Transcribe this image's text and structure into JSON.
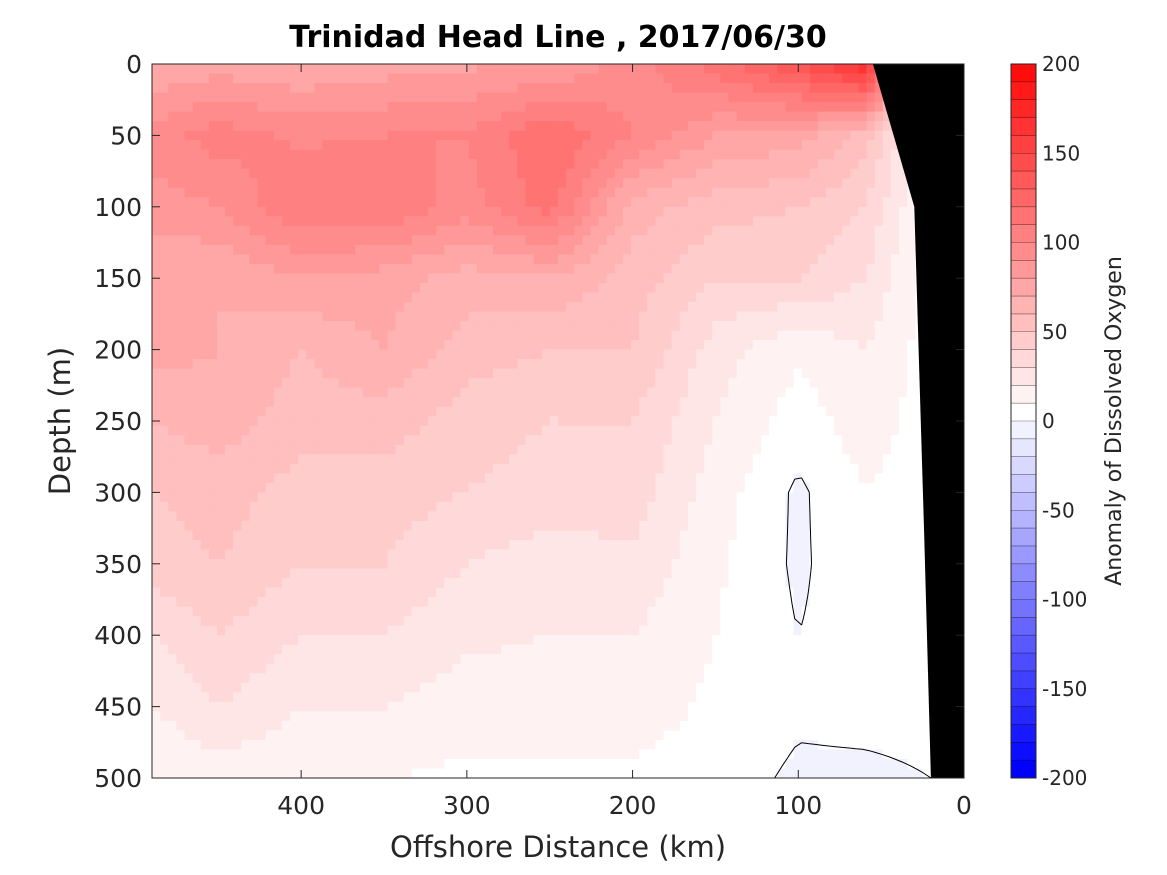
{
  "chart_data": {
    "type": "heatmap",
    "title": "Trinidad Head Line , 2017/06/30",
    "xlabel": "Offshore Distance (km)",
    "ylabel": "Depth (m)",
    "xlim": [
      490,
      0
    ],
    "ylim": [
      0,
      500
    ],
    "xticks": [
      400,
      300,
      200,
      100,
      0
    ],
    "yticks": [
      0,
      50,
      100,
      150,
      200,
      250,
      300,
      350,
      400,
      450,
      500
    ],
    "colorbar": {
      "label": "Anomaly of Dissolved Oxygen",
      "range": [
        -200,
        200
      ],
      "ticks": [
        200,
        150,
        100,
        50,
        0,
        -50,
        -100,
        -150,
        -200
      ],
      "step": 10,
      "colors": {
        "min": "#0000ff",
        "zero": "#ffffff",
        "max": "#ff0000"
      }
    },
    "grid": false,
    "x": [
      490,
      450,
      400,
      350,
      300,
      250,
      200,
      150,
      100,
      60,
      20
    ],
    "depth": [
      0,
      50,
      100,
      150,
      200,
      250,
      300,
      350,
      400,
      450,
      500
    ],
    "values": [
      [
        70,
        75,
        70,
        75,
        78,
        80,
        95,
        115,
        140,
        170,
        10
      ],
      [
        95,
        105,
        98,
        100,
        100,
        120,
        100,
        80,
        75,
        55,
        5
      ],
      [
        85,
        90,
        110,
        110,
        95,
        115,
        65,
        55,
        50,
        40,
        5
      ],
      [
        70,
        70,
        80,
        75,
        65,
        70,
        55,
        40,
        40,
        30,
        5
      ],
      [
        75,
        70,
        60,
        70,
        55,
        50,
        50,
        25,
        12,
        20,
        5
      ],
      [
        60,
        65,
        55,
        55,
        45,
        40,
        40,
        20,
        5,
        15,
        5
      ],
      [
        50,
        55,
        45,
        45,
        40,
        35,
        35,
        15,
        -2,
        10,
        5
      ],
      [
        45,
        50,
        40,
        40,
        30,
        25,
        28,
        12,
        -2,
        8,
        5
      ],
      [
        30,
        40,
        30,
        30,
        22,
        20,
        20,
        10,
        0,
        5,
        5
      ],
      [
        20,
        30,
        20,
        20,
        15,
        15,
        15,
        8,
        2,
        3,
        3
      ],
      [
        10,
        15,
        12,
        10,
        8,
        8,
        8,
        5,
        -2,
        -2,
        0
      ]
    ],
    "bathymetry": [
      [
        20,
        500
      ],
      [
        24,
        330
      ],
      [
        30,
        100
      ],
      [
        55,
        0
      ]
    ]
  }
}
